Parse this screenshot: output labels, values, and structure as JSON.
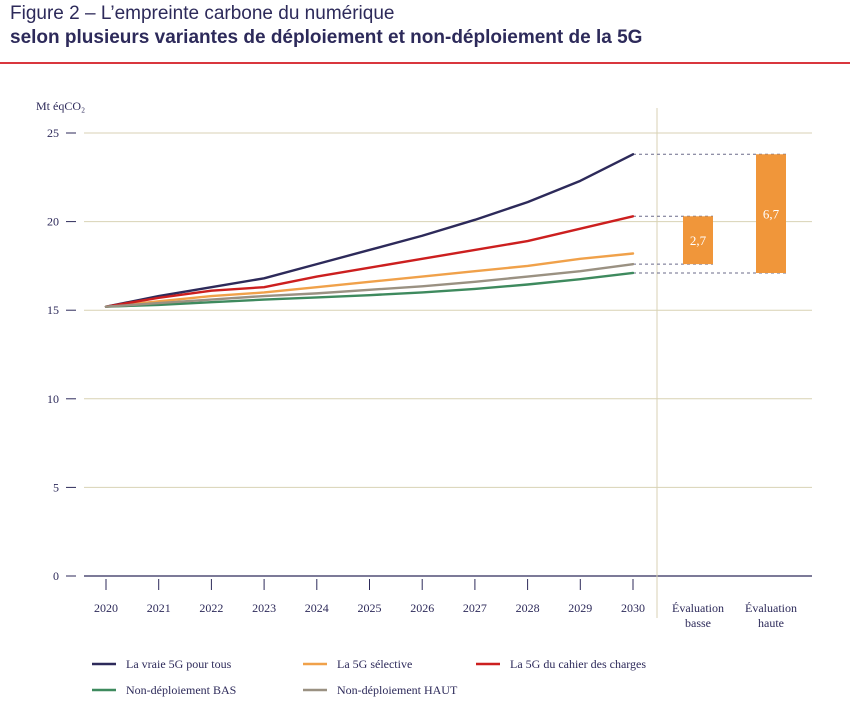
{
  "header": {
    "title": "Figure 2 – L’empreinte carbone du numérique",
    "subtitle": "selon plusieurs variantes de déploiement et non-déploiement de la 5G"
  },
  "colors": {
    "navy": "#2d2a5a",
    "orange_light": "#f0a14a",
    "red": "#cc1f1f",
    "green": "#3e8a5e",
    "grey": "#9a9182",
    "bar_orange": "#f0963a",
    "grid": "#d8d2b4",
    "rule": "#d9363e"
  },
  "chart_data": {
    "type": "line",
    "ylabel": "Mt éqCO₂",
    "ylim": [
      0,
      25
    ],
    "yticks": [
      "0",
      "5",
      "10",
      "15",
      "20",
      "25"
    ],
    "categories": [
      "2020",
      "2021",
      "2022",
      "2023",
      "2024",
      "2025",
      "2026",
      "2027",
      "2028",
      "2029",
      "2030"
    ],
    "extra_categories": [
      "Évaluation\nbasse",
      "Évaluation\nhaute"
    ],
    "series": [
      {
        "name": "La vraie 5G pour tous",
        "color": "#2d2a5a",
        "values": [
          15.2,
          15.8,
          16.3,
          16.8,
          17.6,
          18.4,
          19.2,
          20.1,
          21.1,
          22.3,
          23.8
        ]
      },
      {
        "name": "La 5G sélective",
        "color": "#f0a14a",
        "values": [
          15.2,
          15.5,
          15.8,
          16.0,
          16.3,
          16.6,
          16.9,
          17.2,
          17.5,
          17.9,
          18.2
        ]
      },
      {
        "name": "La 5G du cahier des charges",
        "color": "#cc1f1f",
        "values": [
          15.2,
          15.7,
          16.1,
          16.3,
          16.9,
          17.4,
          17.9,
          18.4,
          18.9,
          19.6,
          20.3
        ]
      },
      {
        "name": "Non-déploiement BAS",
        "color": "#3e8a5e",
        "values": [
          15.2,
          15.3,
          15.45,
          15.6,
          15.72,
          15.85,
          16.0,
          16.2,
          16.45,
          16.75,
          17.1
        ]
      },
      {
        "name": "Non-déploiement HAUT",
        "color": "#9a9182",
        "values": [
          15.2,
          15.4,
          15.6,
          15.8,
          15.95,
          16.15,
          16.35,
          16.6,
          16.9,
          17.2,
          17.6
        ]
      }
    ],
    "evaluations": [
      {
        "name": "Évaluation basse",
        "from": 17.6,
        "to": 20.3,
        "label": "2,7"
      },
      {
        "name": "Évaluation haute",
        "from": 17.1,
        "to": 23.8,
        "label": "6,7"
      }
    ],
    "legend": [
      [
        "La vraie 5G pour tous",
        "La 5G sélective",
        "La 5G du cahier des charges"
      ],
      [
        "Non-déploiement BAS",
        "Non-déploiement HAUT"
      ]
    ]
  }
}
